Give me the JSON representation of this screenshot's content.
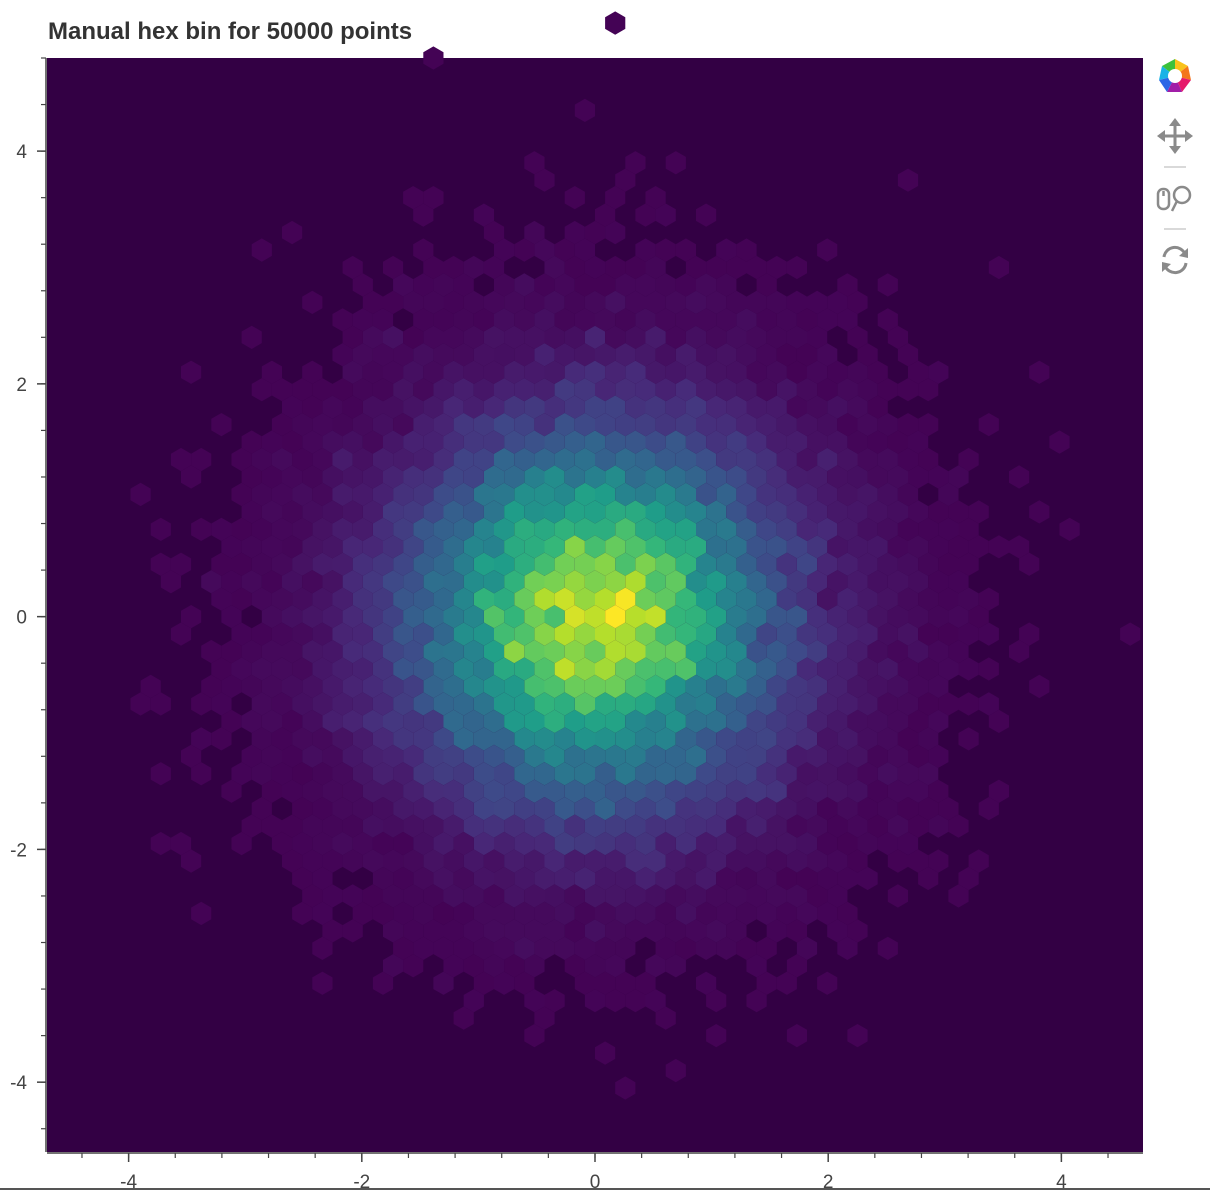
{
  "chart_data": {
    "type": "heatmap",
    "title": "Manual hex bin for 50000 points",
    "n_points": 50000,
    "distribution": "standard normal (mean 0, sd 1) in x and y",
    "hex_size": 0.1,
    "xlim": [
      -4.7,
      4.7
    ],
    "ylim": [
      -4.6,
      4.8
    ],
    "x_ticks": [
      -4,
      -2,
      0,
      2,
      4
    ],
    "y_ticks": [
      -4,
      -2,
      0,
      2,
      4
    ],
    "x_tick_labels": [
      "-4",
      "-2",
      "0",
      "2",
      "4"
    ],
    "y_tick_labels": [
      "-4",
      "-2",
      "0",
      "2",
      "4"
    ],
    "colormap": "Viridis256",
    "peak_bin": {
      "x": 0.15,
      "y": 0.0
    },
    "background_color": "#330044",
    "grid": false,
    "legend": "none"
  },
  "toolbar": {
    "logo_icon": "bokeh-logo-icon",
    "tools": [
      "pan-icon",
      "wheel-zoom-icon",
      "reset-icon"
    ]
  }
}
